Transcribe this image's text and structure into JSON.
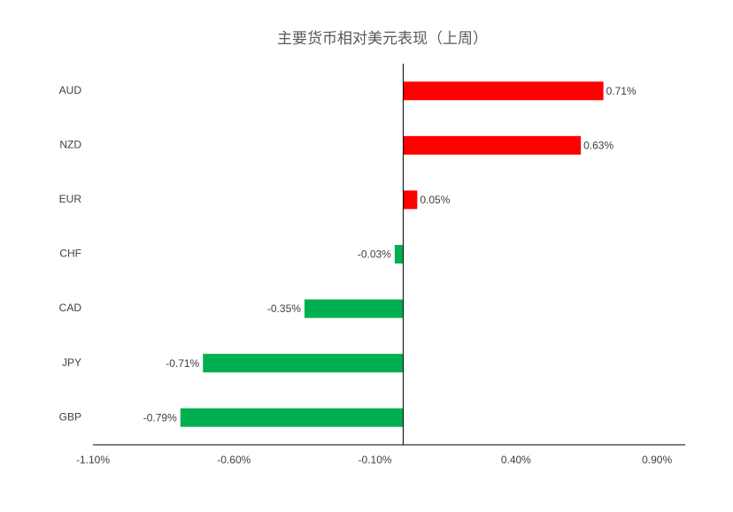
{
  "chart_data": {
    "type": "hbar",
    "title": "主要货币相对美元表现（上周）",
    "categories": [
      "AUD",
      "NZD",
      "EUR",
      "CHF",
      "CAD",
      "JPY",
      "GBP"
    ],
    "values": [
      0.71,
      0.63,
      0.05,
      -0.03,
      -0.35,
      -0.71,
      -0.79
    ],
    "value_labels": [
      "0.71%",
      "0.63%",
      "0.05%",
      "-0.03%",
      "-0.35%",
      "-0.71%",
      "-0.79%"
    ],
    "colors": [
      "#ff0000",
      "#ff0000",
      "#ff0000",
      "#00b050",
      "#00b050",
      "#00b050",
      "#00b050"
    ],
    "xlim": [
      -1.1,
      1.0
    ],
    "xticks": [
      {
        "value": -1.1,
        "label": "-1.10%"
      },
      {
        "value": -0.6,
        "label": "-0.60%"
      },
      {
        "value": -0.1,
        "label": "-0.10%"
      },
      {
        "value": 0.4,
        "label": "0.40%"
      },
      {
        "value": 0.9,
        "label": "0.90%"
      }
    ],
    "grid": false
  }
}
